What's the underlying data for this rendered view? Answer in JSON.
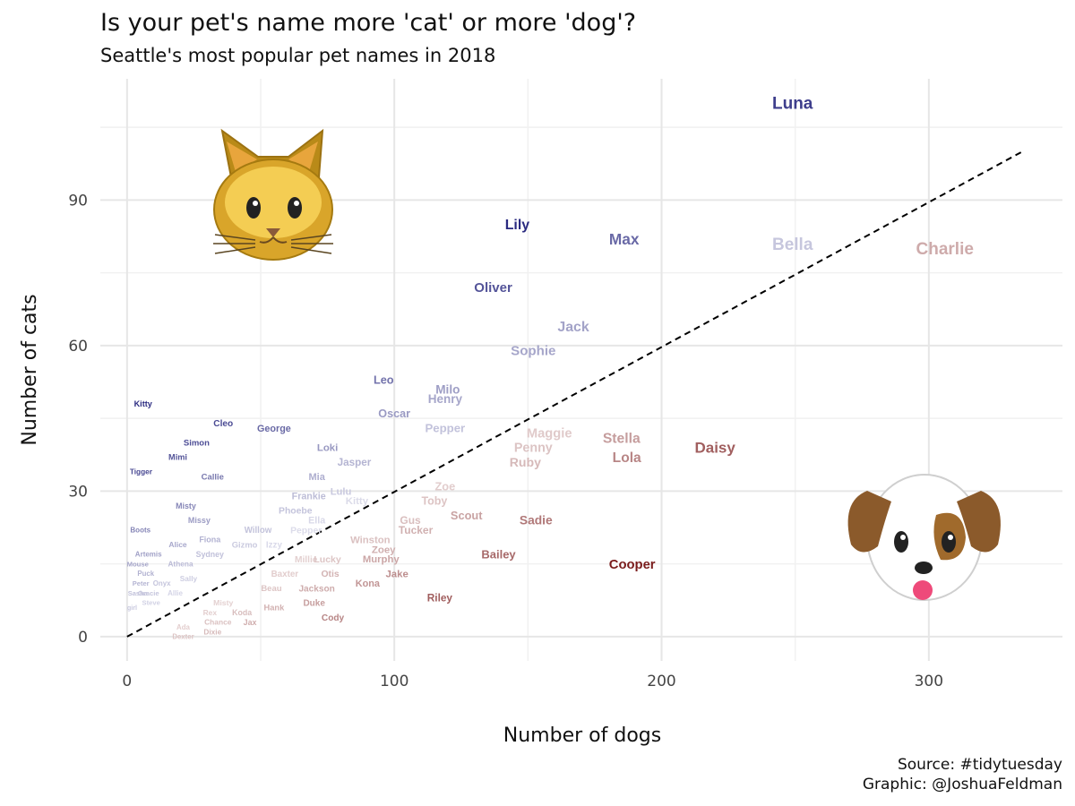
{
  "chart_data": {
    "type": "scatter",
    "title": "Is your pet's name more 'cat' or more 'dog'?",
    "subtitle": "Seattle's most popular pet names in 2018",
    "xlabel": "Number of dogs",
    "ylabel": "Number of cats",
    "xlim": [
      -10,
      350
    ],
    "ylim": [
      -5,
      115
    ],
    "x_ticks": [
      0,
      100,
      200,
      300
    ],
    "y_ticks": [
      0,
      30,
      60,
      90
    ],
    "grid": true,
    "reference_line": {
      "type": "dashed",
      "from": [
        0,
        0
      ],
      "to": [
        335,
        100
      ]
    },
    "colors": {
      "cat": "#2a2a80",
      "dog": "#7a1c1c",
      "grid_major": "#e6e6e6",
      "grid_minor": "#f1f1f1"
    },
    "icons": [
      "cat-face-icon",
      "dog-face-icon"
    ],
    "points": [
      {
        "name": "Luna",
        "x": 249,
        "y": 110
      },
      {
        "name": "Lily",
        "x": 146,
        "y": 85
      },
      {
        "name": "Max",
        "x": 186,
        "y": 82
      },
      {
        "name": "Bella",
        "x": 249,
        "y": 81
      },
      {
        "name": "Charlie",
        "x": 306,
        "y": 80
      },
      {
        "name": "Oliver",
        "x": 137,
        "y": 72
      },
      {
        "name": "Jack",
        "x": 167,
        "y": 64
      },
      {
        "name": "Sophie",
        "x": 152,
        "y": 59
      },
      {
        "name": "Leo",
        "x": 96,
        "y": 53
      },
      {
        "name": "Milo",
        "x": 120,
        "y": 51
      },
      {
        "name": "Henry",
        "x": 119,
        "y": 49
      },
      {
        "name": "Kitty",
        "x": 6,
        "y": 48
      },
      {
        "name": "Oscar",
        "x": 100,
        "y": 46
      },
      {
        "name": "Cleo",
        "x": 36,
        "y": 44
      },
      {
        "name": "George",
        "x": 55,
        "y": 43
      },
      {
        "name": "Pepper",
        "x": 119,
        "y": 43
      },
      {
        "name": "Maggie",
        "x": 158,
        "y": 42
      },
      {
        "name": "Stella",
        "x": 185,
        "y": 41
      },
      {
        "name": "Simon",
        "x": 26,
        "y": 40
      },
      {
        "name": "Daisy",
        "x": 220,
        "y": 39
      },
      {
        "name": "Loki",
        "x": 75,
        "y": 39
      },
      {
        "name": "Penny",
        "x": 152,
        "y": 39
      },
      {
        "name": "Mimi",
        "x": 19,
        "y": 37
      },
      {
        "name": "Lola",
        "x": 187,
        "y": 37
      },
      {
        "name": "Jasper",
        "x": 85,
        "y": 36
      },
      {
        "name": "Ruby",
        "x": 149,
        "y": 36
      },
      {
        "name": "Tigger",
        "x": 1,
        "y": 34
      },
      {
        "name": "Callie",
        "x": 32,
        "y": 33
      },
      {
        "name": "Mia",
        "x": 71,
        "y": 33
      },
      {
        "name": "Zoe",
        "x": 119,
        "y": 31
      },
      {
        "name": "Lulu",
        "x": 80,
        "y": 30
      },
      {
        "name": "Frankie",
        "x": 68,
        "y": 29
      },
      {
        "name": "Toby",
        "x": 115,
        "y": 28
      },
      {
        "name": "Kitty",
        "x": 86,
        "y": 28
      },
      {
        "name": "Misty",
        "x": 22,
        "y": 27
      },
      {
        "name": "Phoebe",
        "x": 63,
        "y": 26
      },
      {
        "name": "Scout",
        "x": 127,
        "y": 25
      },
      {
        "name": "Missy",
        "x": 27,
        "y": 24
      },
      {
        "name": "Ella",
        "x": 71,
        "y": 24
      },
      {
        "name": "Sadie",
        "x": 153,
        "y": 24
      },
      {
        "name": "Gus",
        "x": 106,
        "y": 24
      },
      {
        "name": "Boots",
        "x": 5,
        "y": 22
      },
      {
        "name": "Willow",
        "x": 49,
        "y": 22
      },
      {
        "name": "Pepper",
        "x": 67,
        "y": 22
      },
      {
        "name": "Tucker",
        "x": 108,
        "y": 22
      },
      {
        "name": "Fiona",
        "x": 31,
        "y": 20
      },
      {
        "name": "Winston",
        "x": 91,
        "y": 20
      },
      {
        "name": "Alice",
        "x": 19,
        "y": 19
      },
      {
        "name": "Gizmo",
        "x": 44,
        "y": 19
      },
      {
        "name": "Izzy",
        "x": 55,
        "y": 19
      },
      {
        "name": "Zoey",
        "x": 96,
        "y": 18
      },
      {
        "name": "Artemis",
        "x": 8,
        "y": 17
      },
      {
        "name": "Sydney",
        "x": 31,
        "y": 17
      },
      {
        "name": "Bailey",
        "x": 139,
        "y": 17
      },
      {
        "name": "Murphy",
        "x": 95,
        "y": 16
      },
      {
        "name": "Millie",
        "x": 67,
        "y": 16
      },
      {
        "name": "Lucky",
        "x": 75,
        "y": 16
      },
      {
        "name": "Mouse",
        "x": 4,
        "y": 15
      },
      {
        "name": "Athena",
        "x": 20,
        "y": 15
      },
      {
        "name": "Cooper",
        "x": 189,
        "y": 15
      },
      {
        "name": "Puck",
        "x": 7,
        "y": 13
      },
      {
        "name": "Baxter",
        "x": 59,
        "y": 13
      },
      {
        "name": "Otis",
        "x": 76,
        "y": 13
      },
      {
        "name": "Jake",
        "x": 101,
        "y": 13
      },
      {
        "name": "Sally",
        "x": 23,
        "y": 12
      },
      {
        "name": "Onyx",
        "x": 13,
        "y": 11
      },
      {
        "name": "Peter",
        "x": 2,
        "y": 11
      },
      {
        "name": "Kona",
        "x": 90,
        "y": 11
      },
      {
        "name": "Beau",
        "x": 54,
        "y": 10
      },
      {
        "name": "Jackson",
        "x": 71,
        "y": 10
      },
      {
        "name": "Sasha",
        "x": 4,
        "y": 9
      },
      {
        "name": "Gracie",
        "x": 8,
        "y": 9
      },
      {
        "name": "Allie",
        "x": 18,
        "y": 9
      },
      {
        "name": "Riley",
        "x": 117,
        "y": 8
      },
      {
        "name": "Steve",
        "x": 9,
        "y": 7
      },
      {
        "name": "Misty",
        "x": 36,
        "y": 7
      },
      {
        "name": "Duke",
        "x": 70,
        "y": 7
      },
      {
        "name": "girl",
        "x": 0,
        "y": 6
      },
      {
        "name": "Hank",
        "x": 55,
        "y": 6
      },
      {
        "name": "Koda",
        "x": 43,
        "y": 5
      },
      {
        "name": "Rex",
        "x": 31,
        "y": 5
      },
      {
        "name": "Cody",
        "x": 77,
        "y": 4
      },
      {
        "name": "Chance",
        "x": 34,
        "y": 3
      },
      {
        "name": "Jax",
        "x": 46,
        "y": 3
      },
      {
        "name": "Ada",
        "x": 21,
        "y": 2
      },
      {
        "name": "Dixie",
        "x": 32,
        "y": 1
      },
      {
        "name": "Dexter",
        "x": 21,
        "y": 0
      }
    ]
  },
  "caption": {
    "source": "Source: #tidytuesday",
    "graphic": "Graphic: @JoshuaFeldman"
  }
}
